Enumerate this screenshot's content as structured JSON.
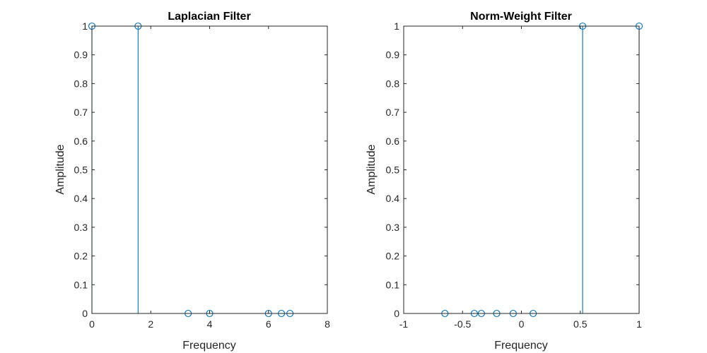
{
  "chart_data": [
    {
      "type": "stem",
      "title": "Laplacian Filter",
      "xlabel": "Frequency",
      "ylabel": "Amplitude",
      "xlim": [
        0,
        8
      ],
      "ylim": [
        0,
        1
      ],
      "xticks": [
        "0",
        "2",
        "4",
        "6",
        "8"
      ],
      "yticks": [
        "0",
        "0.1",
        "0.2",
        "0.3",
        "0.4",
        "0.5",
        "0.6",
        "0.7",
        "0.8",
        "0.9",
        "1"
      ],
      "grid": false,
      "series": [
        {
          "color": "#0072BD",
          "x": [
            0,
            1.57,
            3.27,
            4.0,
            6.0,
            6.44,
            6.73
          ],
          "y": [
            1,
            1,
            0,
            0,
            0,
            0,
            0
          ]
        }
      ]
    },
    {
      "type": "stem",
      "title": "Norm-Weight Filter",
      "xlabel": "Frequency",
      "ylabel": "Amplitude",
      "xlim": [
        -1,
        1
      ],
      "ylim": [
        0,
        1
      ],
      "xticks": [
        "-1",
        "-0.5",
        "0",
        "0.5",
        "1"
      ],
      "yticks": [
        "0",
        "0.1",
        "0.2",
        "0.3",
        "0.4",
        "0.5",
        "0.6",
        "0.7",
        "0.8",
        "0.9",
        "1"
      ],
      "grid": false,
      "series": [
        {
          "color": "#0072BD",
          "x": [
            -0.65,
            -0.4,
            -0.34,
            -0.21,
            -0.07,
            0.1,
            0.52,
            1.0
          ],
          "y": [
            0,
            0,
            0,
            0,
            0,
            0,
            1,
            1
          ]
        }
      ]
    }
  ]
}
